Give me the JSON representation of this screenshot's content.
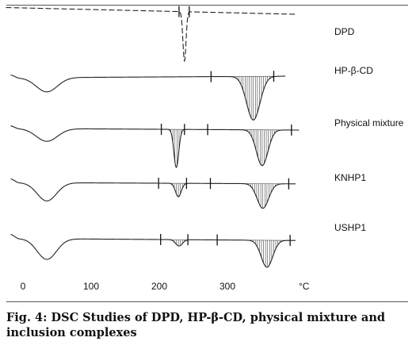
{
  "figure": {
    "caption": "Fig. 4: DSC Studies of DPD, HP-β-CD, physical mixture and inclusion complexes"
  },
  "chart_data": {
    "type": "line",
    "xlim": [
      0,
      400
    ],
    "x_ticks": [
      {
        "value": 0,
        "label": "0"
      },
      {
        "value": 100,
        "label": "100"
      },
      {
        "value": 200,
        "label": "200"
      },
      {
        "value": 300,
        "label": "300"
      }
    ],
    "x_unit": "°C",
    "grid": false,
    "series": [
      {
        "name": "DPD",
        "dashed": true,
        "baseline": 14,
        "slope": 0.02,
        "x_end": 400,
        "endotherms": [
          {
            "center": 237,
            "depth": 62,
            "width": 3.2
          }
        ],
        "markers": [
          229,
          244
        ],
        "hatched": []
      },
      {
        "name": "HP-β-CD",
        "dashed": false,
        "baseline": 97,
        "slope": -0.005,
        "x_end": 385,
        "water_band": {
          "center": 35,
          "depth": 18,
          "width": 22
        },
        "endotherms": [
          {
            "center": 338,
            "depth": 55,
            "width": 14
          }
        ],
        "markers": [
          276,
          368
        ],
        "hatched": [
          [
            276,
            368
          ]
        ]
      },
      {
        "name": "Physical mixture",
        "dashed": false,
        "baseline": 163,
        "slope": 0.005,
        "x_end": 405,
        "water_band": {
          "center": 35,
          "depth": 16,
          "width": 22
        },
        "endotherms": [
          {
            "center": 225,
            "depth": 48,
            "width": 5
          },
          {
            "center": 351,
            "depth": 45,
            "width": 12
          }
        ],
        "markers": [
          203,
          237,
          271,
          394
        ],
        "hatched": [
          [
            203,
            237
          ],
          [
            271,
            394
          ]
        ]
      },
      {
        "name": "KNHP1",
        "dashed": false,
        "baseline": 231,
        "slope": 0.004,
        "x_end": 400,
        "water_band": {
          "center": 35,
          "depth": 23,
          "width": 20
        },
        "endotherms": [
          {
            "center": 228,
            "depth": 17,
            "width": 6
          },
          {
            "center": 352,
            "depth": 31,
            "width": 12
          }
        ],
        "markers": [
          199,
          240,
          275,
          390
        ],
        "hatched": [
          [
            199,
            240
          ],
          [
            275,
            390
          ]
        ]
      },
      {
        "name": "USHP1",
        "dashed": false,
        "baseline": 302,
        "slope": 0.006,
        "x_end": 400,
        "water_band": {
          "center": 35,
          "depth": 26,
          "width": 20
        },
        "endotherms": [
          {
            "center": 229,
            "depth": 8,
            "width": 7
          },
          {
            "center": 358,
            "depth": 34,
            "width": 12
          }
        ],
        "markers": [
          202,
          242,
          285,
          392
        ],
        "hatched": [
          [
            202,
            242
          ],
          [
            285,
            392
          ]
        ]
      }
    ]
  }
}
